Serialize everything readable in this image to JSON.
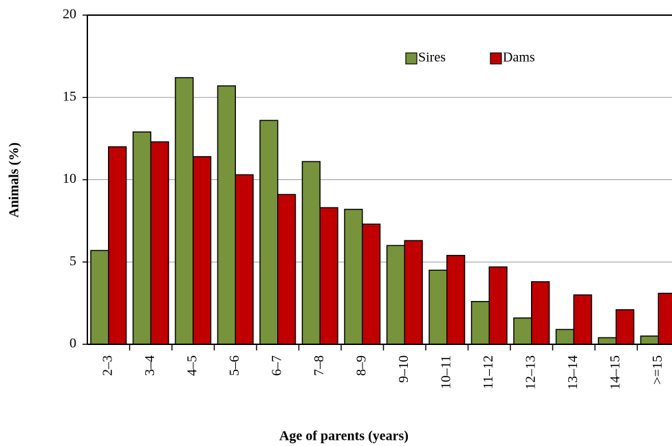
{
  "chart_data": {
    "type": "bar",
    "x_label": "Age of parents (years)",
    "y_label": "Animals  (%)",
    "categories": [
      "2–3",
      "3–4",
      "4–5",
      "5–6",
      "6–7",
      "7–8",
      "8–9",
      "9–10",
      "10–11",
      "11–12",
      "12–13",
      "13–14",
      "14–15",
      ">=15"
    ],
    "series": [
      {
        "name": "Sires",
        "color": "#77933c",
        "values": [
          5.7,
          12.9,
          16.2,
          15.7,
          13.6,
          11.1,
          8.2,
          6.0,
          4.5,
          2.6,
          1.6,
          0.9,
          0.4,
          0.5
        ]
      },
      {
        "name": "Dams",
        "color": "#c00000",
        "values": [
          12.0,
          12.3,
          11.4,
          10.3,
          9.1,
          8.3,
          7.3,
          6.3,
          5.4,
          4.7,
          3.8,
          3.0,
          2.1,
          3.1
        ]
      }
    ],
    "ylim": [
      0,
      20
    ],
    "yticks": [
      0,
      5,
      10,
      15,
      20
    ],
    "grid": true,
    "legend": "top-right"
  }
}
